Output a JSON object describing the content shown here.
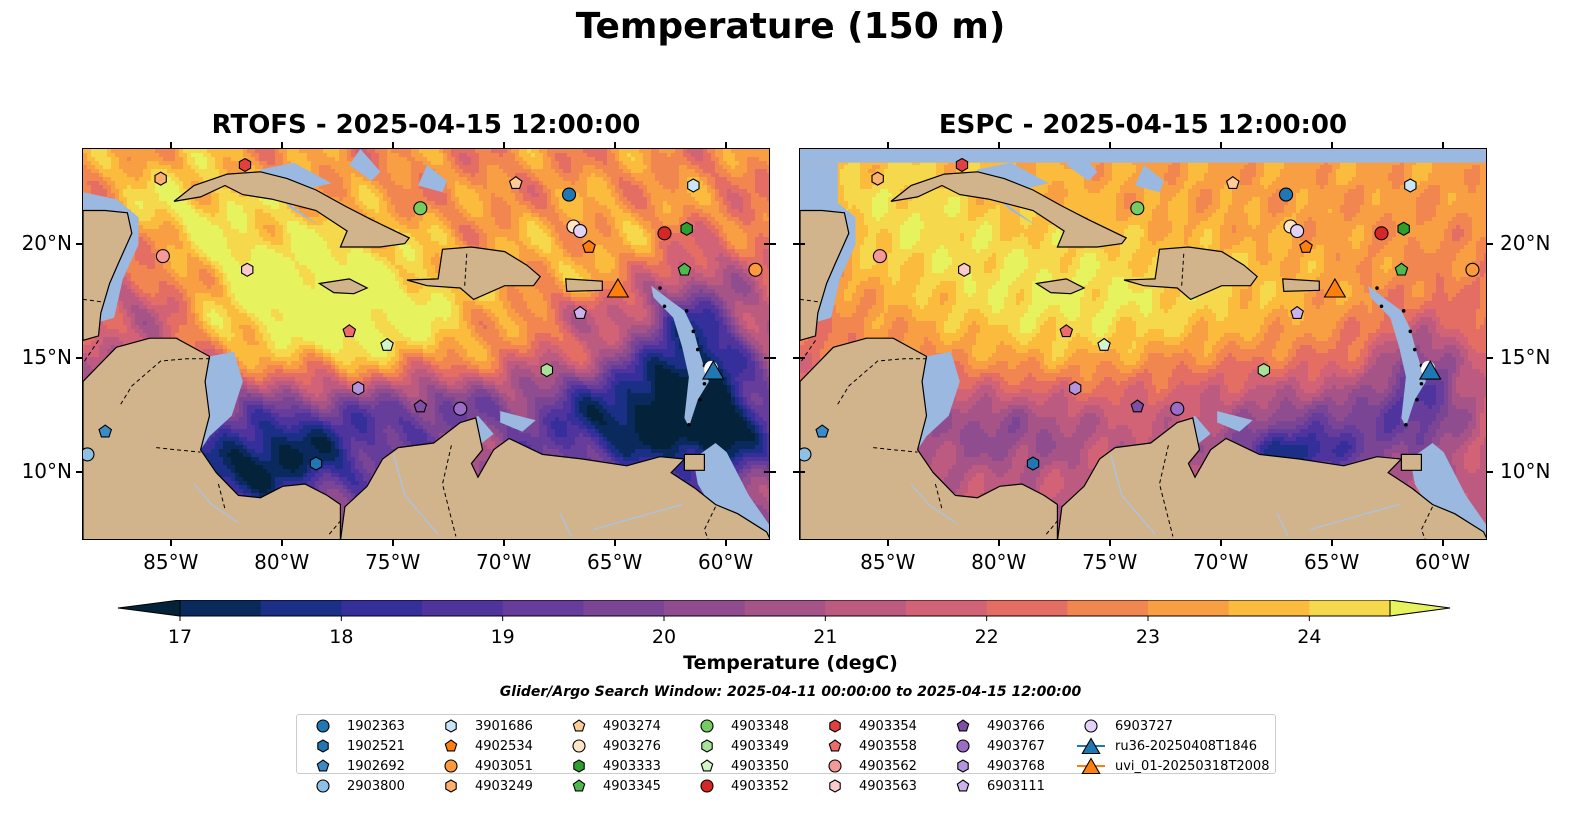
{
  "figure": {
    "title": "Temperature (150 m)",
    "search_window": "Glider/Argo Search Window: 2025-04-11 00:00:00 to 2025-04-15 12:00:00"
  },
  "panels": [
    {
      "title": "RTOFS - 2025-04-15 12:00:00",
      "model": "rtofs"
    },
    {
      "title": "ESPC - 2025-04-15 12:00:00",
      "model": "espc"
    }
  ],
  "map_extent": {
    "lon_min": -89,
    "lon_max": -58,
    "lat_min": 7,
    "lat_max": 24.2
  },
  "axes": {
    "lon_ticks": [
      {
        "value": -85,
        "label": "85°W"
      },
      {
        "value": -80,
        "label": "80°W"
      },
      {
        "value": -75,
        "label": "75°W"
      },
      {
        "value": -70,
        "label": "70°W"
      },
      {
        "value": -65,
        "label": "65°W"
      },
      {
        "value": -60,
        "label": "60°W"
      }
    ],
    "lat_ticks": [
      {
        "value": 20,
        "label": "20°N"
      },
      {
        "value": 15,
        "label": "15°N"
      },
      {
        "value": 10,
        "label": "10°N"
      }
    ]
  },
  "colorbar": {
    "label": "Temperature (degC)",
    "min": 16.5,
    "max": 24.5,
    "step": 0.5,
    "extend": "both",
    "ticks": [
      {
        "value": 17,
        "label": "17"
      },
      {
        "value": 18,
        "label": "18"
      },
      {
        "value": 19,
        "label": "19"
      },
      {
        "value": 20,
        "label": "20"
      },
      {
        "value": 21,
        "label": "21"
      },
      {
        "value": 22,
        "label": "22"
      },
      {
        "value": 23,
        "label": "23"
      },
      {
        "value": 24,
        "label": "24"
      }
    ],
    "colors": [
      "#04233a",
      "#0a2a5e",
      "#1b2f86",
      "#352f9c",
      "#4f349e",
      "#663d9a",
      "#7a4595",
      "#8f4c8e",
      "#a65388",
      "#bc5a80",
      "#d26377",
      "#e56e64",
      "#f18651",
      "#f79f42",
      "#fbbb3c",
      "#f6d84d",
      "#e6f25e"
    ]
  },
  "colors": {
    "land": "#d2b48c",
    "shelf": "#9ab8e0",
    "border": "#000000"
  },
  "legend": [
    {
      "label": "1902363",
      "marker": "circle",
      "color": "#1f77b4"
    },
    {
      "label": "1902521",
      "marker": "hexagon",
      "color": "#1f77b4"
    },
    {
      "label": "1902692",
      "marker": "pentagon",
      "color": "#3a8bc6"
    },
    {
      "label": "2903800",
      "marker": "circle",
      "color": "#8ec0e6"
    },
    {
      "label": "3901686",
      "marker": "hexagon",
      "color": "#c8e6f8"
    },
    {
      "label": "4902534",
      "marker": "pentagon",
      "color": "#ff7f0e"
    },
    {
      "label": "4903051",
      "marker": "circle",
      "color": "#ff9a3c"
    },
    {
      "label": "4903249",
      "marker": "hexagon",
      "color": "#ffb06b"
    },
    {
      "label": "4903274",
      "marker": "pentagon",
      "color": "#ffcc99"
    },
    {
      "label": "4903276",
      "marker": "circle",
      "color": "#ffe5c8"
    },
    {
      "label": "4903333",
      "marker": "hexagon",
      "color": "#2ca02c"
    },
    {
      "label": "4903345",
      "marker": "pentagon",
      "color": "#4fb84f"
    },
    {
      "label": "4903348",
      "marker": "circle",
      "color": "#75cc62"
    },
    {
      "label": "4903349",
      "marker": "hexagon",
      "color": "#a8e29a"
    },
    {
      "label": "4903350",
      "marker": "pentagon",
      "color": "#d4f5c8"
    },
    {
      "label": "4903352",
      "marker": "circle",
      "color": "#d62728"
    },
    {
      "label": "4903354",
      "marker": "hexagon",
      "color": "#e04040"
    },
    {
      "label": "4903558",
      "marker": "pentagon",
      "color": "#ec6c6c"
    },
    {
      "label": "4903562",
      "marker": "circle",
      "color": "#f59898"
    },
    {
      "label": "4903563",
      "marker": "hexagon",
      "color": "#fbcaca"
    },
    {
      "label": "4903766",
      "marker": "pentagon",
      "color": "#7f4fa8"
    },
    {
      "label": "4903767",
      "marker": "circle",
      "color": "#9a6cc6"
    },
    {
      "label": "4903768",
      "marker": "hexagon",
      "color": "#b494dc"
    },
    {
      "label": "6903111",
      "marker": "pentagon",
      "color": "#cdb3ee"
    },
    {
      "label": "6903727",
      "marker": "circle",
      "color": "#e2d2f6"
    },
    {
      "label": "ru36-20250408T1846",
      "marker": "triangle-line",
      "color": "#1f77b4"
    },
    {
      "label": "uvi_01-20250318T2008",
      "marker": "triangle-line",
      "color": "#ff7f0e"
    }
  ],
  "floats": [
    {
      "id": "1902363",
      "lon": -67.1,
      "lat": 22.2
    },
    {
      "id": "1902521",
      "lon": -78.5,
      "lat": 10.4
    },
    {
      "id": "1902692",
      "lon": -88.0,
      "lat": 11.8
    },
    {
      "id": "2903800",
      "lon": -88.8,
      "lat": 10.8
    },
    {
      "id": "3901686",
      "lon": -61.5,
      "lat": 22.6
    },
    {
      "id": "4902534",
      "lon": -66.2,
      "lat": 19.9
    },
    {
      "id": "4903051",
      "lon": -58.7,
      "lat": 18.9
    },
    {
      "id": "4903249",
      "lon": -85.5,
      "lat": 22.9
    },
    {
      "id": "4903274",
      "lon": -69.5,
      "lat": 22.7
    },
    {
      "id": "4903276",
      "lon": -66.9,
      "lat": 20.8
    },
    {
      "id": "4903333",
      "lon": -61.8,
      "lat": 20.7
    },
    {
      "id": "4903345",
      "lon": -61.9,
      "lat": 18.9
    },
    {
      "id": "4903348",
      "lon": -73.8,
      "lat": 21.6
    },
    {
      "id": "4903349",
      "lon": -68.1,
      "lat": 14.5
    },
    {
      "id": "4903350",
      "lon": -75.3,
      "lat": 15.6
    },
    {
      "id": "4903352",
      "lon": -62.8,
      "lat": 20.5
    },
    {
      "id": "4903354",
      "lon": -81.7,
      "lat": 23.5
    },
    {
      "id": "4903558",
      "lon": -77.0,
      "lat": 16.2
    },
    {
      "id": "4903562",
      "lon": -85.4,
      "lat": 19.5
    },
    {
      "id": "4903563",
      "lon": -81.6,
      "lat": 18.9
    },
    {
      "id": "4903766",
      "lon": -73.8,
      "lat": 12.9
    },
    {
      "id": "4903767",
      "lon": -72.0,
      "lat": 12.8
    },
    {
      "id": "4903768",
      "lon": -76.6,
      "lat": 13.7
    },
    {
      "id": "6903111",
      "lon": -66.6,
      "lat": 17.0
    },
    {
      "id": "6903727",
      "lon": -66.6,
      "lat": 20.6
    }
  ],
  "gliders": [
    {
      "id": "ru36-20250408T1846",
      "lon": -60.6,
      "lat": 14.5
    },
    {
      "id": "uvi_01-20250318T2008",
      "lon": -64.9,
      "lat": 18.1
    }
  ]
}
